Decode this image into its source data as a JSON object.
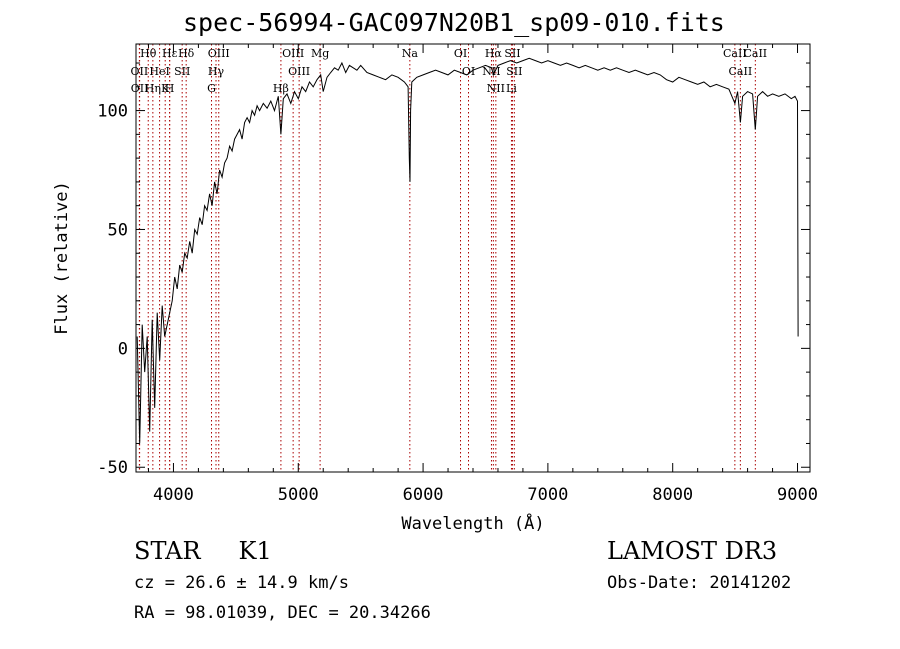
{
  "chart_data": {
    "type": "line",
    "title": "spec-56994-GAC097N20B1_sp09-010.fits",
    "xlabel": "Wavelength (Å)",
    "ylabel": "Flux (relative)",
    "xlim": [
      3700,
      9100
    ],
    "ylim": [
      -52,
      128
    ],
    "xticks": [
      4000,
      5000,
      6000,
      7000,
      8000,
      9000
    ],
    "yticks": [
      -50,
      0,
      50,
      100
    ],
    "line_color": "#000000",
    "marker_color": "#aa0000",
    "series": [
      {
        "name": "spectrum",
        "x": [
          3710,
          3730,
          3750,
          3770,
          3790,
          3810,
          3830,
          3850,
          3870,
          3890,
          3910,
          3930,
          3950,
          3970,
          3990,
          4010,
          4030,
          4050,
          4070,
          4090,
          4110,
          4130,
          4150,
          4170,
          4190,
          4210,
          4230,
          4250,
          4270,
          4290,
          4310,
          4330,
          4350,
          4370,
          4390,
          4410,
          4430,
          4450,
          4470,
          4490,
          4510,
          4530,
          4550,
          4570,
          4590,
          4610,
          4630,
          4650,
          4670,
          4690,
          4720,
          4750,
          4780,
          4810,
          4840,
          4861,
          4880,
          4910,
          4940,
          4970,
          5000,
          5030,
          5060,
          5090,
          5120,
          5150,
          5180,
          5200,
          5230,
          5260,
          5290,
          5320,
          5350,
          5380,
          5410,
          5440,
          5470,
          5500,
          5550,
          5600,
          5650,
          5700,
          5750,
          5800,
          5850,
          5880,
          5890,
          5895,
          5900,
          5910,
          5950,
          6000,
          6050,
          6100,
          6150,
          6200,
          6250,
          6300,
          6350,
          6400,
          6450,
          6500,
          6550,
          6563,
          6600,
          6650,
          6700,
          6750,
          6800,
          6850,
          6900,
          6950,
          7000,
          7050,
          7100,
          7150,
          7200,
          7250,
          7300,
          7350,
          7400,
          7450,
          7500,
          7550,
          7600,
          7650,
          7700,
          7750,
          7800,
          7850,
          7900,
          7950,
          8000,
          8050,
          8100,
          8150,
          8200,
          8250,
          8300,
          8350,
          8400,
          8450,
          8498,
          8520,
          8542,
          8560,
          8600,
          8640,
          8662,
          8680,
          8720,
          8760,
          8800,
          8850,
          8900,
          8950,
          8980,
          9000,
          9005
        ],
        "values": [
          5,
          -40,
          10,
          -10,
          5,
          -35,
          12,
          -25,
          15,
          -5,
          18,
          5,
          10,
          15,
          20,
          30,
          25,
          35,
          32,
          40,
          38,
          45,
          40,
          50,
          48,
          55,
          52,
          60,
          58,
          65,
          60,
          70,
          65,
          75,
          72,
          78,
          80,
          85,
          83,
          88,
          90,
          92,
          88,
          95,
          97,
          95,
          100,
          98,
          102,
          100,
          103,
          101,
          104,
          100,
          106,
          90,
          105,
          107,
          103,
          108,
          105,
          110,
          108,
          112,
          110,
          113,
          115,
          108,
          114,
          116,
          118,
          117,
          120,
          116,
          119,
          118,
          117,
          119,
          116,
          115,
          114,
          113,
          115,
          114,
          112,
          110,
          80,
          70,
          100,
          112,
          114,
          115,
          116,
          117,
          116,
          115,
          117,
          116,
          115,
          117,
          118,
          119,
          118,
          115,
          119,
          120,
          121,
          120,
          121,
          122,
          121,
          120,
          121,
          120,
          119,
          120,
          119,
          118,
          119,
          118,
          117,
          118,
          117,
          118,
          117,
          116,
          117,
          116,
          115,
          116,
          115,
          113,
          112,
          114,
          113,
          112,
          111,
          112,
          110,
          111,
          110,
          109,
          103,
          108,
          95,
          106,
          108,
          107,
          92,
          106,
          108,
          106,
          107,
          106,
          107,
          105,
          106,
          104,
          5
        ]
      }
    ],
    "lines": [
      {
        "label": "Hθ",
        "x": 3798
      },
      {
        "label": "OII",
        "x": 3727
      },
      {
        "label": "OII",
        "x": 3729
      },
      {
        "label": "Hη",
        "x": 3835
      },
      {
        "label": "HeI",
        "x": 3889
      },
      {
        "label": "Hε",
        "x": 3970
      },
      {
        "label": "K",
        "x": 3934
      },
      {
        "label": "H",
        "x": 3969
      },
      {
        "label": "SII",
        "x": 4070
      },
      {
        "label": "Hδ",
        "x": 4102
      },
      {
        "label": "OIII",
        "x": 4363
      },
      {
        "label": "Hγ",
        "x": 4341
      },
      {
        "label": "G",
        "x": 4305
      },
      {
        "label": "OIII",
        "x": 4959
      },
      {
        "label": "OIII",
        "x": 5007
      },
      {
        "label": "Hβ",
        "x": 4861
      },
      {
        "label": "Mg",
        "x": 5175
      },
      {
        "label": "Na",
        "x": 5894
      },
      {
        "label": "OI",
        "x": 6300
      },
      {
        "label": "OI",
        "x": 6364
      },
      {
        "label": "Hα",
        "x": 6563
      },
      {
        "label": "NII",
        "x": 6548
      },
      {
        "label": "NII",
        "x": 6583
      },
      {
        "label": "SII",
        "x": 6716
      },
      {
        "label": "SII",
        "x": 6731
      },
      {
        "label": "Li",
        "x": 6708
      },
      {
        "label": "CaII",
        "x": 8498
      },
      {
        "label": "CaII",
        "x": 8542
      },
      {
        "label": "CaII",
        "x": 8662
      }
    ]
  },
  "info": {
    "object_class": "STAR",
    "subclass": "K1",
    "survey": "LAMOST DR3",
    "cz": "cz = 26.6 ± 14.9 km/s",
    "obs_date": "Obs-Date: 20141202",
    "radec": "RA =  98.01039, DEC =  20.34266"
  }
}
